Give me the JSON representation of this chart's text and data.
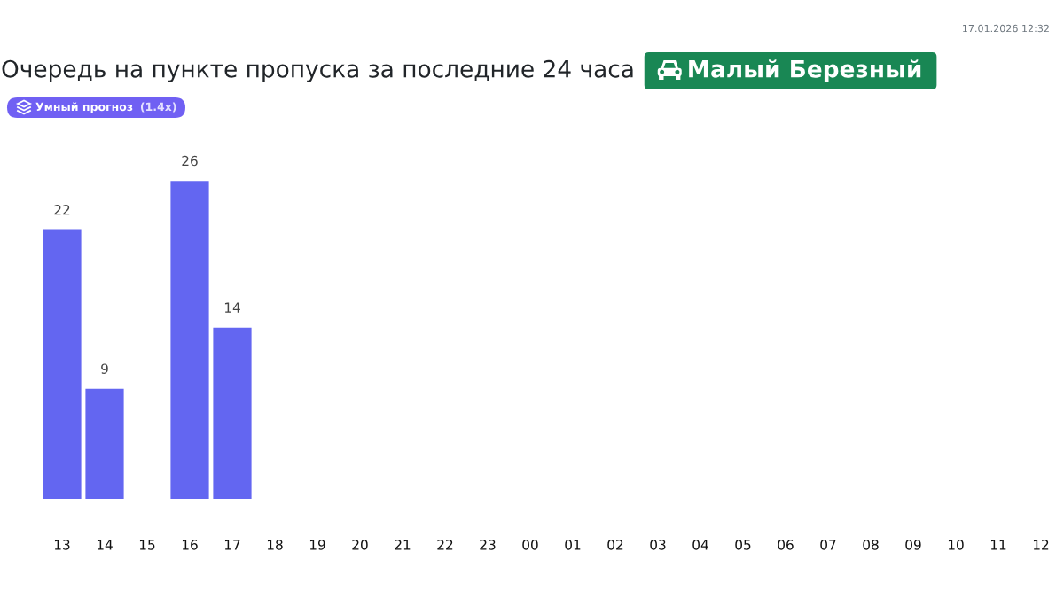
{
  "chart_data": {
    "type": "bar",
    "title": "Очередь на пункте пропуска за последние 24 часа",
    "subtitle": "Малый Березный",
    "categories": [
      "13",
      "14",
      "15",
      "16",
      "17",
      "18",
      "19",
      "20",
      "21",
      "22",
      "23",
      "00",
      "01",
      "02",
      "03",
      "04",
      "05",
      "06",
      "07",
      "08",
      "09",
      "10",
      "11",
      "12"
    ],
    "values": [
      22,
      9,
      null,
      26,
      14,
      null,
      null,
      null,
      null,
      null,
      null,
      null,
      null,
      null,
      null,
      null,
      null,
      null,
      null,
      null,
      null,
      null,
      null,
      null
    ],
    "color": "#6366f1",
    "data_labels": true,
    "tick_labels": "x",
    "annotations": [
      "17.01.2026 12:32",
      "Умный прогноз",
      "(1.4x)"
    ]
  }
}
